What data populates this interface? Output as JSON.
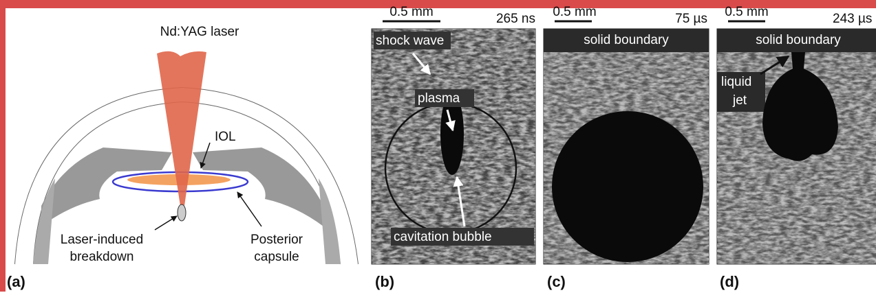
{
  "panels": [
    {
      "label": "(a)",
      "title": "Nd:YAG laser",
      "annotations": [
        {
          "lines": [
            "IOL"
          ]
        },
        {
          "lines": [
            "Laser-induced",
            "breakdown"
          ]
        },
        {
          "lines": [
            "Posterior",
            "capsule"
          ]
        }
      ]
    },
    {
      "label": "(b)",
      "scale_bar": "0.5 mm",
      "time": "265 ns",
      "annotations": [
        {
          "lines": [
            "shock wave"
          ]
        },
        {
          "lines": [
            "plasma"
          ]
        },
        {
          "lines": [
            "cavitation bubble"
          ]
        }
      ]
    },
    {
      "label": "(c)",
      "scale_bar": "0.5 mm",
      "time": "75 µs",
      "annotations": [
        {
          "lines": [
            "solid boundary"
          ]
        }
      ]
    },
    {
      "label": "(d)",
      "scale_bar": "0.5 mm",
      "time": "243 µs",
      "annotations": [
        {
          "lines": [
            "solid boundary"
          ]
        },
        {
          "lines": [
            "liquid",
            "jet"
          ]
        }
      ]
    }
  ]
}
